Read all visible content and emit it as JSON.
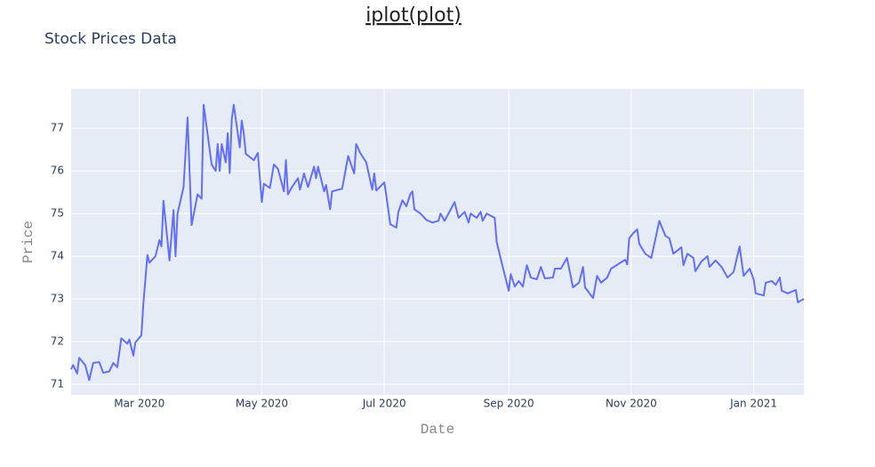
{
  "header": "iplot(plot)",
  "chart_data": {
    "type": "line",
    "title": "Stock Prices Data",
    "x_label": "Date",
    "y_label": "Price",
    "color": "#636efa",
    "grid": true,
    "x": [
      "2020-01-27",
      "2020-01-28",
      "2020-01-30",
      "2020-01-31",
      "2020-02-03",
      "2020-02-05",
      "2020-02-07",
      "2020-02-10",
      "2020-02-12",
      "2020-02-15",
      "2020-02-17",
      "2020-02-19",
      "2020-02-21",
      "2020-02-24",
      "2020-02-25",
      "2020-02-27",
      "2020-02-28",
      "2020-03-02",
      "2020-03-03",
      "2020-03-05",
      "2020-03-06",
      "2020-03-09",
      "2020-03-11",
      "2020-03-12",
      "2020-03-13",
      "2020-03-16",
      "2020-03-18",
      "2020-03-19",
      "2020-03-20",
      "2020-03-23",
      "2020-03-25",
      "2020-03-27",
      "2020-03-30",
      "2020-04-01",
      "2020-04-02",
      "2020-04-06",
      "2020-04-08",
      "2020-04-09",
      "2020-04-10",
      "2020-04-11",
      "2020-04-13",
      "2020-04-14",
      "2020-04-15",
      "2020-04-16",
      "2020-04-17",
      "2020-04-20",
      "2020-04-21",
      "2020-04-22",
      "2020-04-23",
      "2020-04-27",
      "2020-04-29",
      "2020-05-01",
      "2020-05-02",
      "2020-05-05",
      "2020-05-07",
      "2020-05-09",
      "2020-05-12",
      "2020-05-13",
      "2020-05-14",
      "2020-05-16",
      "2020-05-19",
      "2020-05-20",
      "2020-05-22",
      "2020-05-24",
      "2020-05-27",
      "2020-05-28",
      "2020-05-29",
      "2020-06-01",
      "2020-06-02",
      "2020-06-04",
      "2020-06-05",
      "2020-06-08",
      "2020-06-10",
      "2020-06-13",
      "2020-06-16",
      "2020-06-17",
      "2020-06-19",
      "2020-06-22",
      "2020-06-25",
      "2020-06-26",
      "2020-06-27",
      "2020-07-01",
      "2020-07-02",
      "2020-07-04",
      "2020-07-07",
      "2020-07-08",
      "2020-07-10",
      "2020-07-12",
      "2020-07-14",
      "2020-07-15",
      "2020-07-16",
      "2020-07-19",
      "2020-07-22",
      "2020-07-25",
      "2020-07-28",
      "2020-07-29",
      "2020-07-31",
      "2020-08-02",
      "2020-08-05",
      "2020-08-07",
      "2020-08-10",
      "2020-08-12",
      "2020-08-13",
      "2020-08-16",
      "2020-08-18",
      "2020-08-19",
      "2020-08-21",
      "2020-08-25",
      "2020-08-26",
      "2020-08-29",
      "2020-09-01",
      "2020-09-02",
      "2020-09-04",
      "2020-09-06",
      "2020-09-08",
      "2020-09-10",
      "2020-09-12",
      "2020-09-15",
      "2020-09-17",
      "2020-09-19",
      "2020-09-23",
      "2020-09-24",
      "2020-09-27",
      "2020-09-30",
      "2020-10-03",
      "2020-10-06",
      "2020-10-08",
      "2020-10-09",
      "2020-10-13",
      "2020-10-15",
      "2020-10-17",
      "2020-10-20",
      "2020-10-22",
      "2020-10-26",
      "2020-10-29",
      "2020-10-30",
      "2020-10-31",
      "2020-11-02",
      "2020-11-04",
      "2020-11-05",
      "2020-11-08",
      "2020-11-11",
      "2020-11-15",
      "2020-11-18",
      "2020-11-20",
      "2020-11-22",
      "2020-11-26",
      "2020-11-27",
      "2020-11-29",
      "2020-12-02",
      "2020-12-03",
      "2020-12-06",
      "2020-12-09",
      "2020-12-10",
      "2020-12-13",
      "2020-12-16",
      "2020-12-19",
      "2020-12-22",
      "2020-12-25",
      "2020-12-27",
      "2020-12-30",
      "2021-01-01",
      "2021-01-02",
      "2021-01-06",
      "2021-01-07",
      "2021-01-10",
      "2021-01-12",
      "2021-01-14",
      "2021-01-15",
      "2021-01-18",
      "2021-01-22",
      "2021-01-23",
      "2021-01-26"
    ],
    "values": [
      71.35,
      71.45,
      71.25,
      71.62,
      71.45,
      71.1,
      71.5,
      71.52,
      71.27,
      71.3,
      71.5,
      71.4,
      72.08,
      71.95,
      72.05,
      71.67,
      71.98,
      72.15,
      72.9,
      74.03,
      73.85,
      74.0,
      74.38,
      74.23,
      75.3,
      73.9,
      75.08,
      74.0,
      75.0,
      75.62,
      77.25,
      74.73,
      75.45,
      75.35,
      77.55,
      76.15,
      76.0,
      76.63,
      76.0,
      76.63,
      76.2,
      76.88,
      75.95,
      77.2,
      77.55,
      76.55,
      77.18,
      76.88,
      76.4,
      76.25,
      76.42,
      75.27,
      75.7,
      75.6,
      76.15,
      76.05,
      75.52,
      76.25,
      75.45,
      75.62,
      75.83,
      75.56,
      75.94,
      75.62,
      76.1,
      75.83,
      76.1,
      75.52,
      75.67,
      75.1,
      75.52,
      75.56,
      75.58,
      76.35,
      75.94,
      76.63,
      76.42,
      76.2,
      75.56,
      75.94,
      75.54,
      75.73,
      75.42,
      74.75,
      74.67,
      75.04,
      75.31,
      75.17,
      75.46,
      75.52,
      75.1,
      75.0,
      74.85,
      74.79,
      74.83,
      75.0,
      74.83,
      75.0,
      75.27,
      74.9,
      75.04,
      74.79,
      75.0,
      74.9,
      75.04,
      74.83,
      75.0,
      74.9,
      74.33,
      73.75,
      73.19,
      73.58,
      73.29,
      73.42,
      73.29,
      73.79,
      73.5,
      73.46,
      73.75,
      73.48,
      73.5,
      73.71,
      73.71,
      73.96,
      73.27,
      73.38,
      73.75,
      73.27,
      73.02,
      73.54,
      73.38,
      73.5,
      73.71,
      73.83,
      73.92,
      73.81,
      74.42,
      74.54,
      74.63,
      74.29,
      74.06,
      73.96,
      74.83,
      74.48,
      74.42,
      74.06,
      74.21,
      73.79,
      74.06,
      73.96,
      73.65,
      73.88,
      74.0,
      73.75,
      73.9,
      73.75,
      73.5,
      73.63,
      74.23,
      73.54,
      73.71,
      73.46,
      73.13,
      73.08,
      73.38,
      73.42,
      73.33,
      73.5,
      73.19,
      73.13,
      73.21,
      72.92,
      73.0
    ],
    "xlim": [
      "2020-01-27",
      "2021-01-26"
    ],
    "xticks": [
      {
        "value": "2020-03-01",
        "label": "Mar 2020"
      },
      {
        "value": "2020-05-01",
        "label": "May 2020"
      },
      {
        "value": "2020-07-01",
        "label": "Jul 2020"
      },
      {
        "value": "2020-09-01",
        "label": "Sep 2020"
      },
      {
        "value": "2020-11-01",
        "label": "Nov 2020"
      },
      {
        "value": "2021-01-01",
        "label": "Jan 2021"
      }
    ],
    "ylim": [
      70.75,
      77.92
    ],
    "yticks": [
      71,
      72,
      73,
      74,
      75,
      76,
      77
    ]
  }
}
